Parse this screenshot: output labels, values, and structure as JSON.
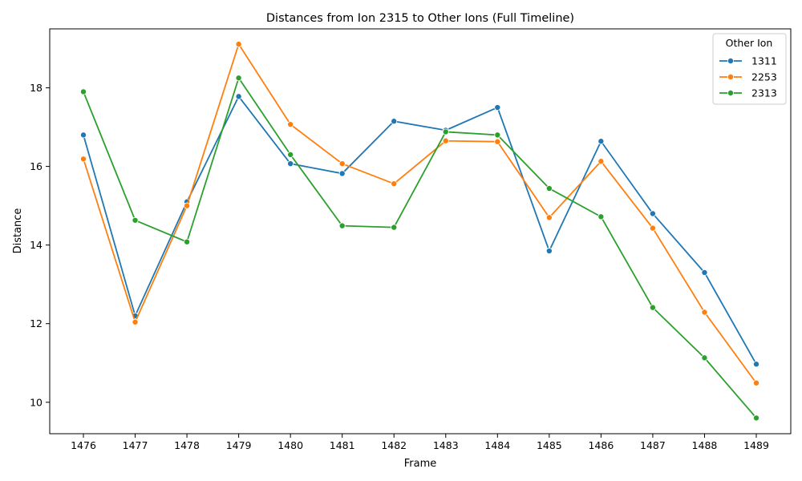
{
  "chart_data": {
    "type": "line",
    "title": "Distances from Ion 2315 to Other Ions (Full Timeline)",
    "xlabel": "Frame",
    "ylabel": "Distance",
    "categories": [
      "1476",
      "1477",
      "1478",
      "1479",
      "1480",
      "1481",
      "1482",
      "1483",
      "1484",
      "1485",
      "1486",
      "1487",
      "1488",
      "1489"
    ],
    "ylim": [
      9.2,
      19.5
    ],
    "yticks": [
      "10",
      "12",
      "14",
      "16",
      "18"
    ],
    "legend": {
      "title": "Other Ion",
      "position": "top-right"
    },
    "grid": false,
    "series": [
      {
        "name": "1311",
        "color": "#1f77b4",
        "values": [
          16.8,
          12.2,
          15.1,
          17.78,
          16.07,
          15.82,
          17.15,
          16.92,
          17.5,
          13.85,
          16.64,
          14.8,
          13.3,
          10.97
        ]
      },
      {
        "name": "2253",
        "color": "#ff7f0e",
        "values": [
          16.19,
          12.04,
          15.0,
          19.11,
          17.07,
          16.07,
          15.56,
          16.65,
          16.63,
          14.7,
          16.13,
          14.43,
          12.29,
          10.49
        ]
      },
      {
        "name": "2313",
        "color": "#2ca02c",
        "values": [
          17.9,
          14.63,
          14.08,
          18.25,
          16.3,
          14.49,
          14.45,
          16.88,
          16.8,
          15.44,
          14.72,
          12.41,
          11.13,
          9.6
        ]
      }
    ]
  }
}
